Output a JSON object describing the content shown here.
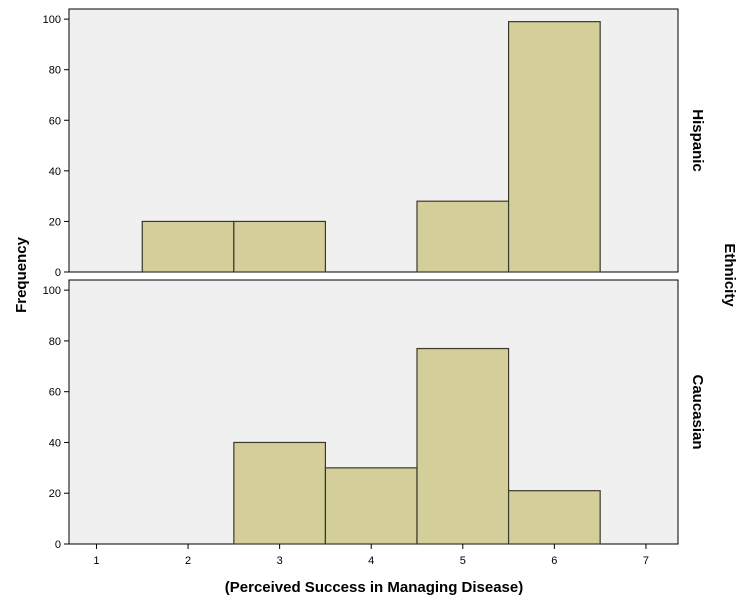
{
  "chart_data": {
    "type": "bar",
    "xlabel": "(Perceived Success in Managing Disease)",
    "ylabel": "Frequency",
    "panel_group_label": "Ethnicity",
    "xlim": [
      0.7,
      7.35
    ],
    "ylim": [
      0,
      104
    ],
    "x_ticks": [
      1,
      2,
      3,
      4,
      5,
      6,
      7
    ],
    "y_ticks": [
      0,
      20,
      40,
      60,
      80,
      100
    ],
    "bin_width": 1,
    "grid": false,
    "colors": {
      "bar_fill": "#d4cf9a",
      "bar_stroke": "#3a3a2a",
      "panel_bg": "#f0f0f0"
    },
    "panels": [
      {
        "name": "Hispanic",
        "bins": [
          {
            "x": 2,
            "value": 20
          },
          {
            "x": 3,
            "value": 20
          },
          {
            "x": 5,
            "value": 28
          },
          {
            "x": 6,
            "value": 99
          }
        ]
      },
      {
        "name": "Caucasian",
        "bins": [
          {
            "x": 3,
            "value": 40
          },
          {
            "x": 4,
            "value": 30
          },
          {
            "x": 5,
            "value": 77
          },
          {
            "x": 6,
            "value": 21
          }
        ]
      }
    ]
  }
}
